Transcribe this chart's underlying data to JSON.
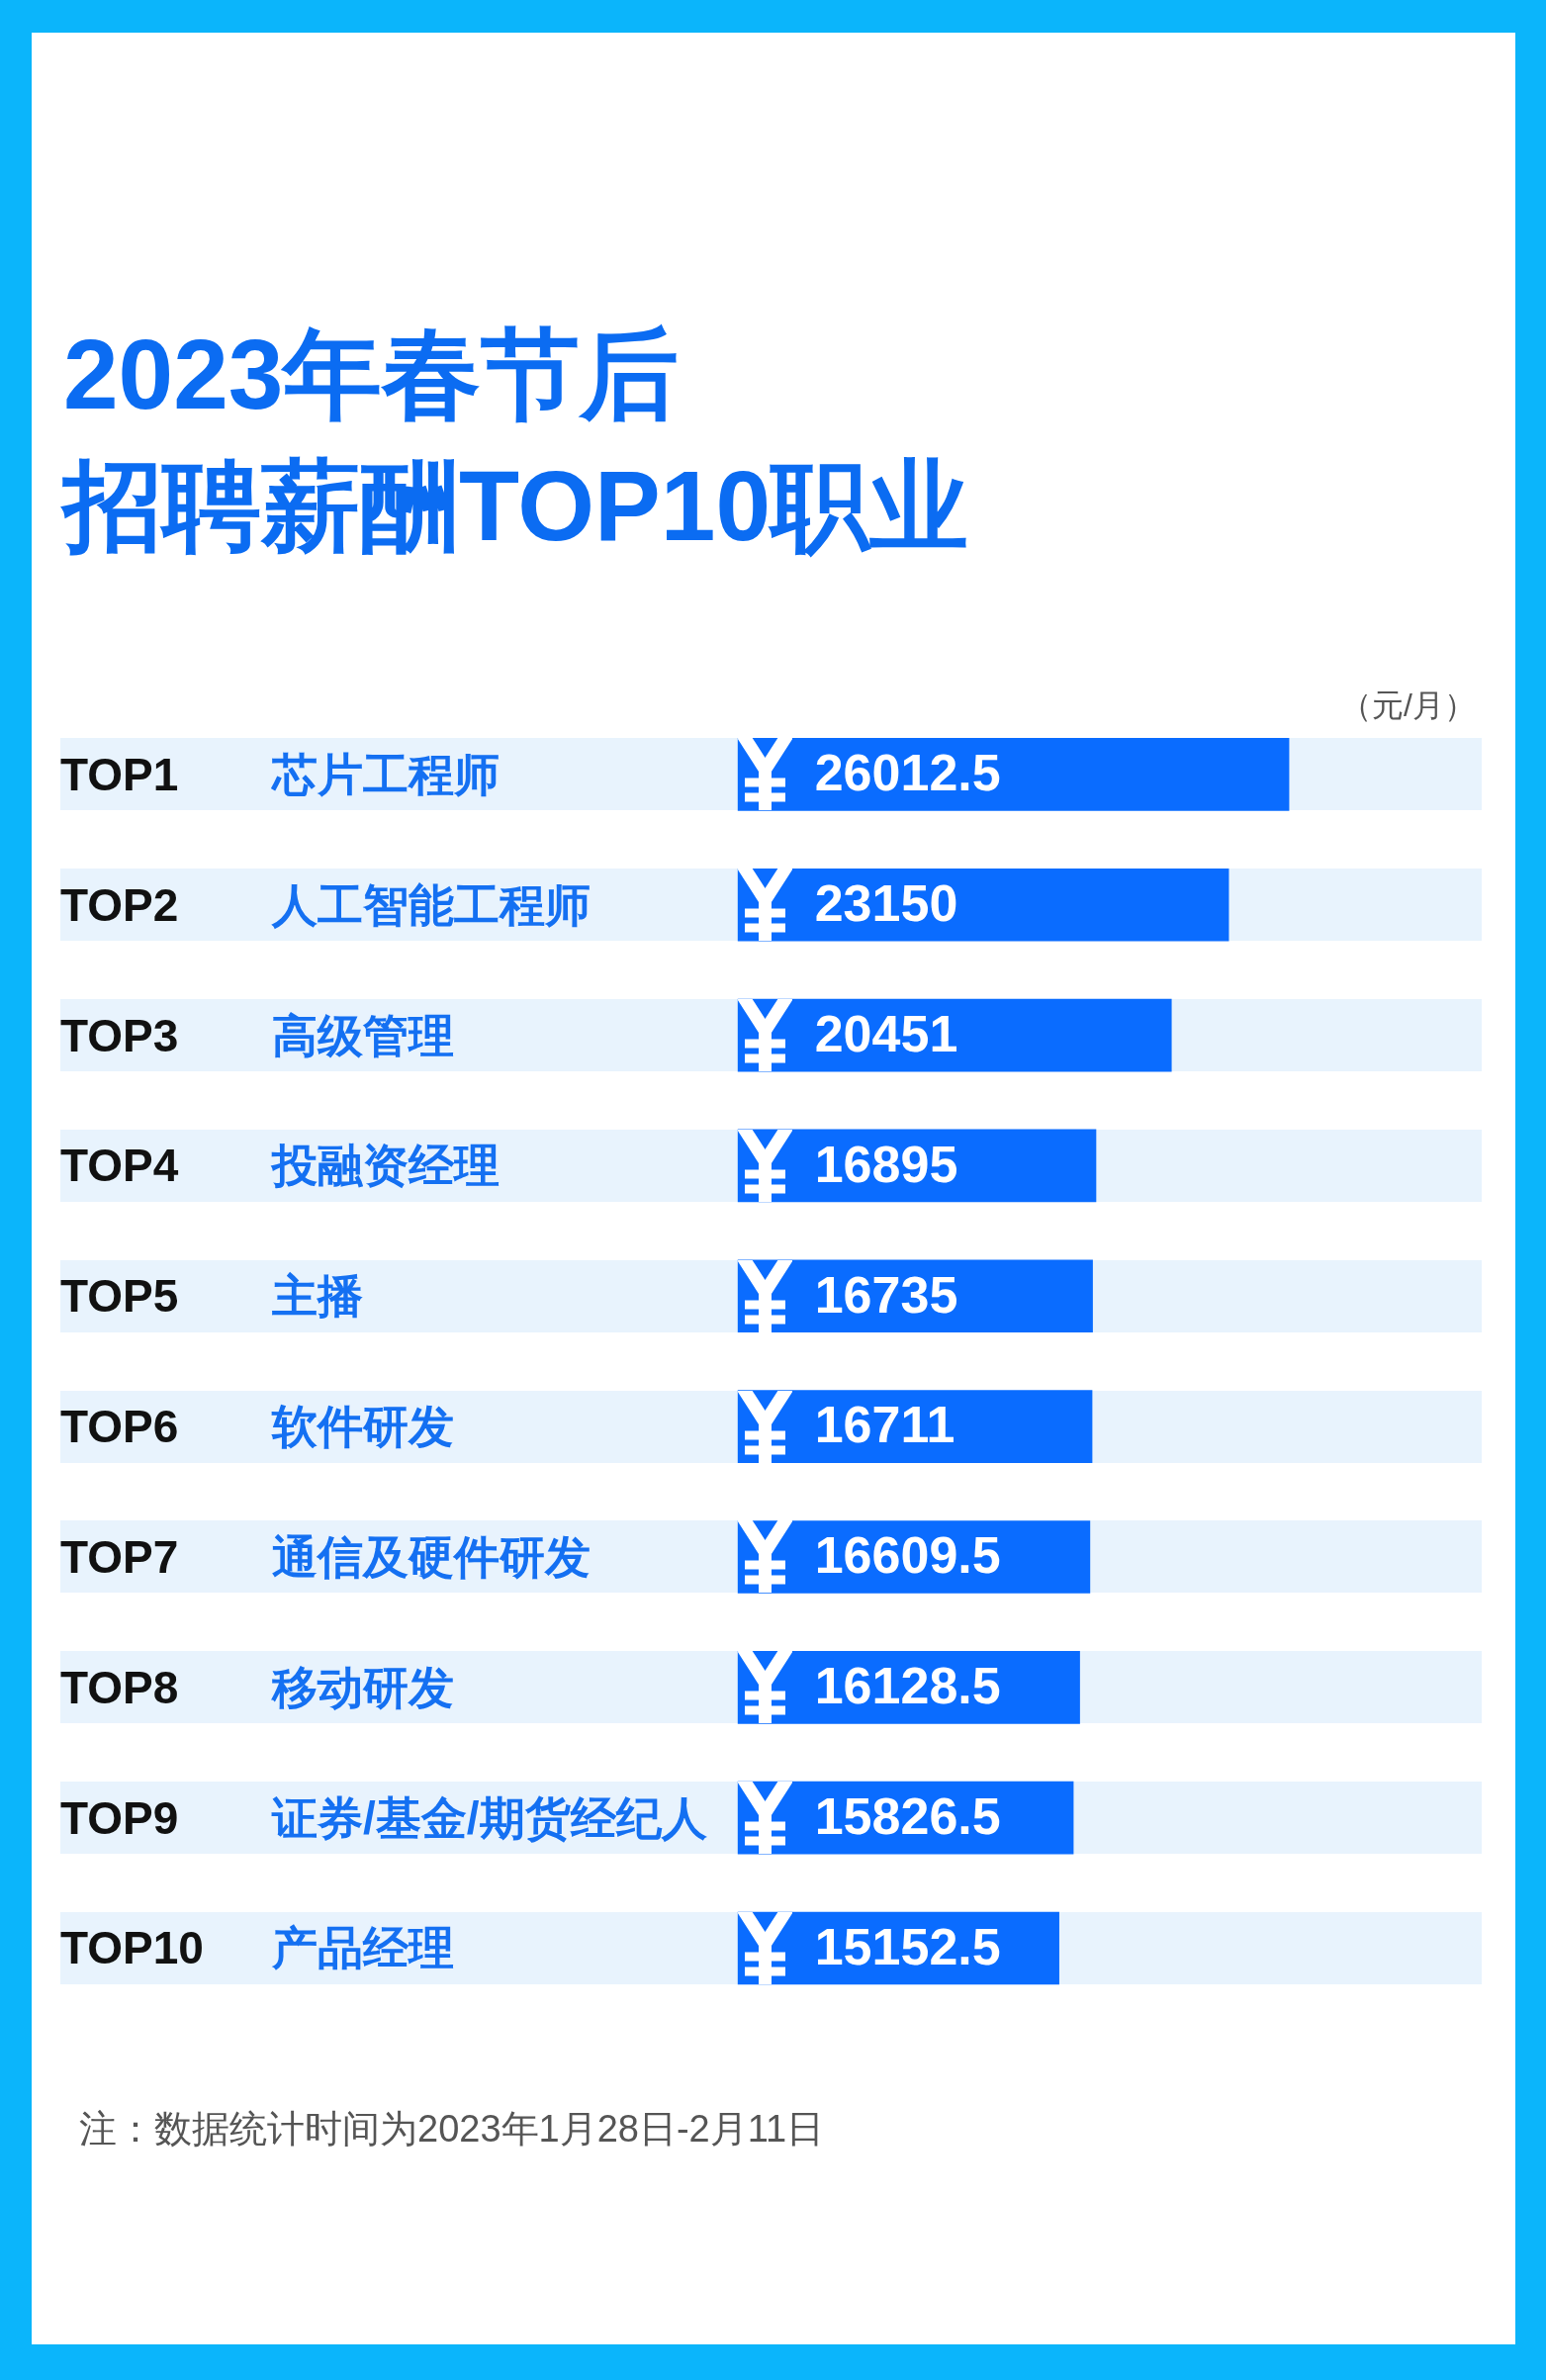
{
  "chart_data": {
    "type": "bar",
    "orientation": "horizontal",
    "title": "2023年春节后",
    "subtitle": "招聘薪酬TOP10职业",
    "xlabel": "（元/月）",
    "categories": [
      "TOP1 芯片工程师",
      "TOP2 人工智能工程师",
      "TOP3 高级管理",
      "TOP4 投融资经理",
      "TOP5 主播",
      "TOP6 软件研发",
      "TOP7 通信及硬件研发",
      "TOP8 移动研发",
      "TOP9 证券/基金/期货经纪人",
      "TOP10 产品经理"
    ],
    "values": [
      26012.5,
      23150,
      20451,
      16895,
      16735,
      16711,
      16609.5,
      16128.5,
      15826.5,
      15152.5
    ],
    "color": "#0a6cff",
    "data_labels": true,
    "tick_labels": "y",
    "legend": false,
    "annotations": [
      "注：数据统计时间为2023年1月28日-2月11日"
    ]
  }
}
